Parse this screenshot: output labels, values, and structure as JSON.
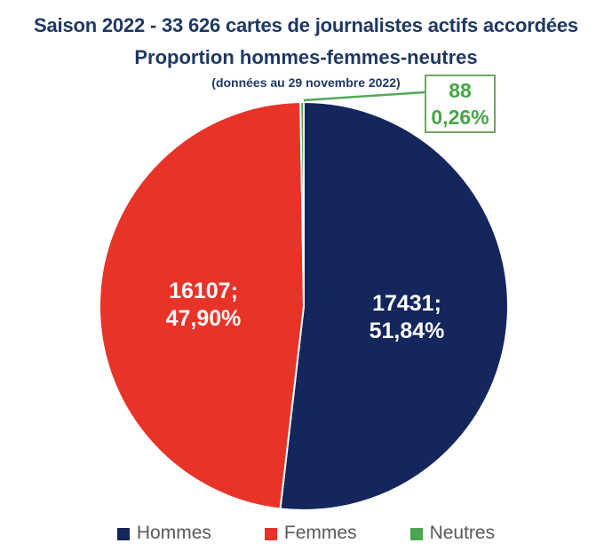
{
  "title": "Saison 2022 - 33 626 cartes de journalistes actifs accordées",
  "subtitle": "Proportion hommes-femmes-neutres",
  "note": "(données au 29 novembre 2022)",
  "callout": {
    "value": "88",
    "percent": "0,26%"
  },
  "colors": {
    "title_text": "#1f3864",
    "legend_text": "#595959",
    "slice_label_text": "#ffffff",
    "callout_border": "#6fa662",
    "callout_text": "#47a447",
    "leader_line": "#55a756",
    "background": "#ffffff"
  },
  "chart_data": {
    "type": "pie",
    "title": "Saison 2022 - 33 626 cartes de journalistes actifs accordées",
    "subtitle": "Proportion hommes-femmes-neutres",
    "note": "(données au 29 novembre 2022)",
    "total": 33626,
    "start_angle_deg": 0,
    "direction": "clockwise",
    "legend_position": "bottom",
    "slice_border_color": "#ffffff",
    "series": [
      {
        "name": "Hommes",
        "value": 17431,
        "percent_label": "51,84%",
        "color": "#15265c",
        "label_lines": [
          "17431;",
          "51,84%"
        ]
      },
      {
        "name": "Femmes",
        "value": 16107,
        "percent_label": "47,90%",
        "color": "#e83329",
        "label_lines": [
          "16107;",
          "47,90%"
        ]
      },
      {
        "name": "Neutres",
        "value": 88,
        "percent_label": "0,26%",
        "color": "#4ba64f",
        "label_lines": [
          "88",
          "0,26%"
        ]
      }
    ]
  }
}
